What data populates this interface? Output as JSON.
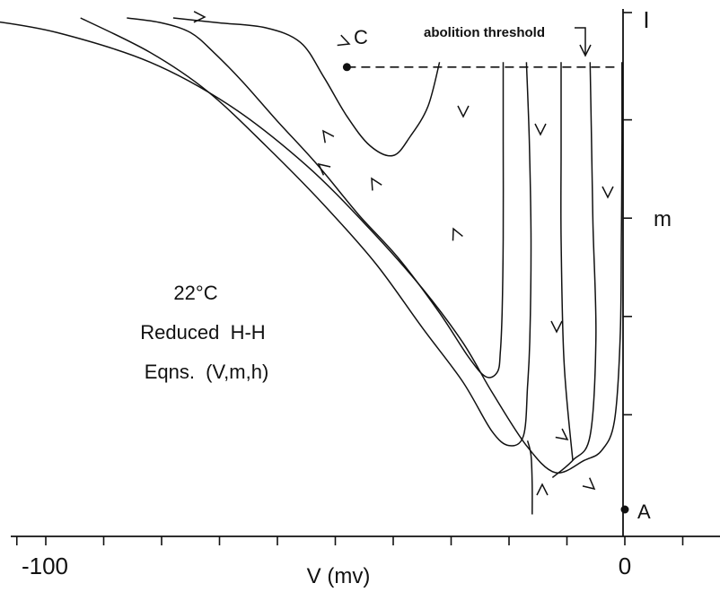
{
  "chart_data": {
    "type": "line",
    "xlabel": "V (mv)",
    "ylabel": "m",
    "xlim": [
      -125,
      8
    ],
    "ylim": [
      0,
      1
    ],
    "xticks": [
      -100,
      0
    ],
    "yticks": [
      1
    ],
    "x_tick_labels": [
      "-100",
      "0"
    ],
    "y_tick_labels": [
      "I"
    ],
    "annotations": {
      "conditions": [
        "22°C",
        "Reduced  H-H",
        "Eqns.  (V,m,h)"
      ],
      "threshold": "abolition threshold",
      "point_A": "A",
      "point_C": "C"
    },
    "points": {
      "A": {
        "x": 0,
        "y": 0.0
      },
      "C": {
        "x": -48,
        "y": 0.9
      }
    },
    "threshold_level": 0.9,
    "series": [
      {
        "x": [
          -0.5,
          -0.5,
          -0.6,
          -0.8,
          -1.8,
          -4,
          -7,
          -12,
          -17,
          -23,
          -28,
          -35,
          -44,
          -55,
          -68,
          -82,
          -98,
          -110,
          -115
        ],
        "y": [
          0.91,
          0.75,
          0.55,
          0.35,
          0.18,
          0.12,
          0.1,
          0.075,
          0.13,
          0.24,
          0.34,
          0.45,
          0.57,
          0.7,
          0.82,
          0.91,
          0.97,
          0.995,
          1.0
        ]
      },
      {
        "x": [
          -6,
          -5.8,
          -5.5,
          -5,
          -6,
          -9,
          -12.5
        ],
        "y": [
          0.91,
          0.78,
          0.58,
          0.35,
          0.15,
          0.1,
          0.065
        ]
      },
      {
        "x": [
          -11,
          -11,
          -11,
          -10.5,
          -9
        ],
        "y": [
          0.91,
          0.73,
          0.55,
          0.3,
          0.1
        ]
      },
      {
        "x": [
          -17,
          -16.5,
          -16.2,
          -16.4,
          -16.8,
          -17.5,
          -20,
          -23,
          -28,
          -35,
          -43,
          -52,
          -62,
          -72,
          -82,
          -94
        ],
        "y": [
          0.91,
          0.75,
          0.55,
          0.35,
          0.25,
          0.15,
          0.13,
          0.16,
          0.26,
          0.37,
          0.5,
          0.62,
          0.74,
          0.85,
          0.93,
          1.0
        ]
      },
      {
        "x": [
          -21,
          -21,
          -21,
          -21.2,
          -21.5,
          -22,
          -24,
          -27,
          -32,
          -39,
          -46,
          -53,
          -60,
          -66,
          -71,
          -75,
          -80,
          -86
        ],
        "y": [
          0.91,
          0.75,
          0.55,
          0.4,
          0.32,
          0.28,
          0.27,
          0.31,
          0.4,
          0.51,
          0.6,
          0.7,
          0.79,
          0.87,
          0.93,
          0.97,
          0.99,
          1.0
        ]
      },
      {
        "x": [
          -32,
          -34,
          -37,
          -40,
          -44,
          -48,
          -52,
          -56,
          -62,
          -70,
          -78
        ],
        "y": [
          0.91,
          0.82,
          0.76,
          0.72,
          0.74,
          0.8,
          0.88,
          0.95,
          0.98,
          0.99,
          1.0
        ]
      },
      {
        "x": [
          -16,
          -16,
          -16.2,
          -16.8
        ],
        "y": [
          -0.01,
          0.05,
          0.11,
          0.14
        ]
      }
    ]
  }
}
